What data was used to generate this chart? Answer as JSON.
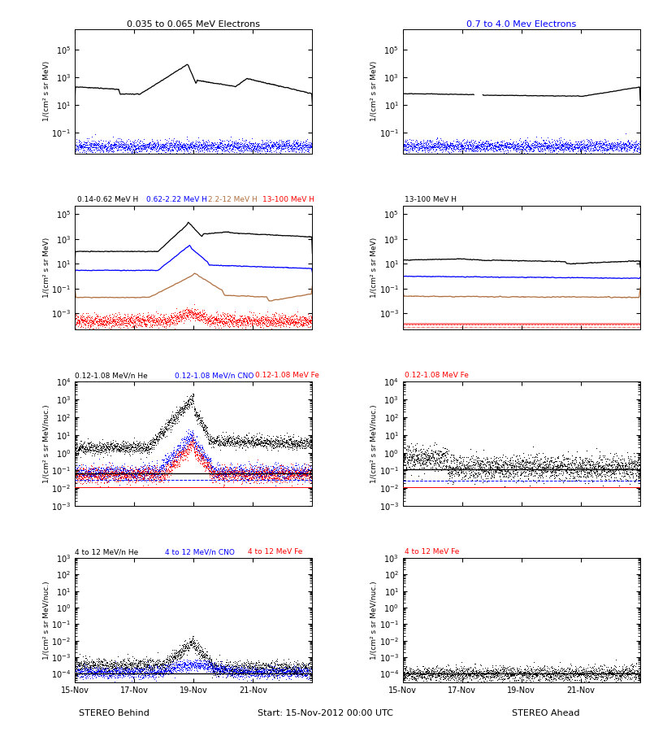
{
  "title_p1L": "0.035 to 0.065 MeV Electrons",
  "title_p1R": "0.7 to 4.0 Mev Electrons",
  "title_p2L": [
    [
      "0.14-0.62 MeV H",
      "#000000"
    ],
    [
      "0.62-2.22 MeV H",
      "#0000ff"
    ],
    [
      "2.2-12 MeV H",
      "#b07040"
    ],
    [
      "13-100 MeV H",
      "#ff0000"
    ]
  ],
  "title_p2R": [
    [
      "13-100 MeV H",
      "#000000"
    ],
    [
      "",
      "#0000ff"
    ],
    [
      "",
      "#b07040"
    ],
    [
      "",
      "#ff0000"
    ]
  ],
  "title_p3L": [
    [
      "0.12-1.08 MeV/n He",
      "#000000"
    ],
    [
      "0.12-1.08 MeV/n CNO",
      "#0000ff"
    ],
    [
      "0.12-1.08 MeV Fe",
      "#ff0000"
    ]
  ],
  "title_p3R": [
    [
      "0.12-1.08 MeV Fe",
      "#ff0000"
    ]
  ],
  "title_p4L": [
    [
      "4 to 12 MeV/n He",
      "#000000"
    ],
    [
      "4 to 12 MeV/n CNO",
      "#0000ff"
    ],
    [
      "4 to 12 MeV Fe",
      "#ff0000"
    ]
  ],
  "title_p4R": [
    [
      "4 to 12 MeV Fe",
      "#ff0000"
    ]
  ],
  "xlabel_left": "STEREO Behind",
  "xlabel_center": "Start: 15-Nov-2012 00:00 UTC",
  "xlabel_right": "STEREO Ahead",
  "xtick_labels": [
    "15-Nov",
    "17-Nov",
    "19-Nov",
    "21-Nov"
  ],
  "xtick_days": [
    0,
    2,
    4,
    6
  ],
  "ylabel_mev": "1/(cm² s sr MeV)",
  "ylabel_mevnuc": "1/(cm² s sr MeV/nuc.)",
  "p1L_ylim": [
    0.003,
    3000000.0
  ],
  "p1R_ylim": [
    0.003,
    3000000.0
  ],
  "p2L_ylim": [
    5e-05,
    500000.0
  ],
  "p2R_ylim": [
    5e-05,
    500000.0
  ],
  "p3L_ylim": [
    0.001,
    10000.0
  ],
  "p3R_ylim": [
    0.001,
    10000.0
  ],
  "p4L_ylim": [
    3e-05,
    1000.0
  ],
  "p4R_ylim": [
    3e-05,
    1000.0
  ]
}
